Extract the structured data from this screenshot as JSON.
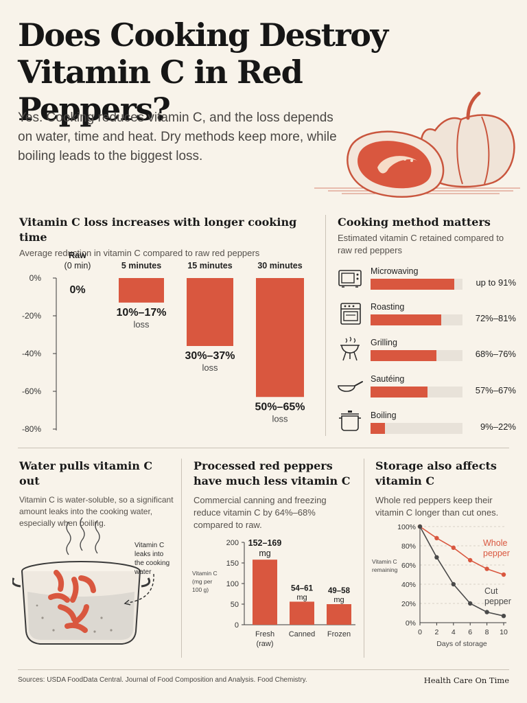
{
  "header": {
    "title": "Does Cooking Destroy Vitamin C in Red Peppers?",
    "intro": "Yes. Cooking reduces vitamin C, and the loss depends on water, time and heat. Dry methods keep more, while boiling leads to the biggest loss."
  },
  "colors": {
    "accent": "#d9573f",
    "track": "#e8e2d9",
    "text": "#1f1c1a",
    "muted": "#55504b",
    "background": "#f8f3ea",
    "dark_line": "#4a4a4a"
  },
  "time_chart": {
    "title": "Vitamin C loss increases with longer cooking time",
    "subtitle": "Average reduction in vitamin C compared to raw red peppers",
    "loss_word": "loss"
  },
  "methods": {
    "title": "Cooking method matters",
    "subtitle": "Estimated vitamin C retained compared to raw red peppers",
    "items": [
      {
        "label": "Microwaving",
        "value": "up to 91%",
        "icon": "microwave-icon",
        "retained": 91
      },
      {
        "label": "Roasting",
        "value": "72%–81%",
        "icon": "oven-icon",
        "retained": 76.5
      },
      {
        "label": "Grilling",
        "value": "68%–76%",
        "icon": "grill-icon",
        "retained": 72
      },
      {
        "label": "Sautéing",
        "value": "57%–67%",
        "icon": "pan-icon",
        "retained": 62
      },
      {
        "label": "Boiling",
        "value": "9%–22%",
        "icon": "pot-icon",
        "retained": 15.5
      }
    ]
  },
  "water": {
    "title": "Water pulls vitamin C out",
    "text": "Vitamin C is water-soluble, so a significant amount leaks into the cooking water, especially when boiling.",
    "callout": [
      "Vitamin C",
      "leaks into",
      "the cooking",
      "water"
    ]
  },
  "processed": {
    "title": "Processed red peppers have much less vitamin C",
    "text": "Commercial canning and freezing reduce vitamin C by 64%–68% compared to raw."
  },
  "storage": {
    "title": "Storage also affects vitamin C",
    "text": "Whole red peppers keep their vitamin C longer than cut ones."
  },
  "footer": {
    "sources": "Sources: USDA FoodData Central. Journal of Food Composition and Analysis. Food Chemistry.",
    "brand": "Health Care On Time"
  },
  "chart_data": [
    {
      "type": "bar",
      "title": "Vitamin C loss increases with longer cooking time",
      "subtitle": "Average reduction in vitamin C compared to raw red peppers",
      "categories": [
        [
          "Raw",
          "(0 min)"
        ],
        [
          "5 minutes"
        ],
        [
          "15 minutes"
        ],
        [
          "30 minutes"
        ]
      ],
      "values": [
        0,
        -13,
        -36,
        -63
      ],
      "labels": [
        "0%",
        "10%–17%",
        "30%–37%",
        "50%–65%"
      ],
      "ylim": [
        -80,
        0
      ],
      "yticks": [
        0,
        -20,
        -40,
        -60,
        -80
      ],
      "ytick_labels": [
        "0%",
        "-20%",
        "-40%",
        "-60%",
        "-80%"
      ]
    },
    {
      "type": "bar",
      "title": "Cooking method matters",
      "categories": [
        "Microwaving",
        "Roasting",
        "Grilling",
        "Sautéing",
        "Boiling"
      ],
      "values": [
        91,
        76.5,
        72,
        62,
        15.5
      ],
      "labels": [
        "up to 91%",
        "72%–81%",
        "68%–76%",
        "57%–67%",
        "9%–22%"
      ],
      "xlim": [
        0,
        100
      ]
    },
    {
      "type": "bar",
      "title": "Processed red peppers have much less vitamin C",
      "ylabel": [
        "Vitamin C",
        "(mg per",
        "100 g)"
      ],
      "categories": [
        [
          "Fresh",
          "(raw)"
        ],
        [
          "Canned"
        ],
        [
          "Frozen"
        ]
      ],
      "values": [
        158,
        56,
        50
      ],
      "labels": [
        [
          "152–169",
          "mg"
        ],
        [
          "54–61",
          "mg"
        ],
        [
          "49–58",
          "mg"
        ]
      ],
      "ylim": [
        0,
        200
      ],
      "yticks": [
        0,
        50,
        100,
        150,
        200
      ]
    },
    {
      "type": "line",
      "title": "Storage also affects vitamin C",
      "xlabel": "Days of storage",
      "ylabel": [
        "Vitamin C",
        "remaining"
      ],
      "xlim": [
        0,
        10
      ],
      "ylim": [
        0,
        100
      ],
      "xticks": [
        0,
        2,
        4,
        6,
        8,
        10
      ],
      "yticks": [
        0,
        20,
        40,
        60,
        80,
        100
      ],
      "ytick_labels": [
        "0%",
        "20%",
        "40%",
        "60%",
        "80%",
        "100%"
      ],
      "series": [
        {
          "name": [
            "Whole",
            "pepper"
          ],
          "x": [
            0,
            2,
            4,
            6,
            8,
            10
          ],
          "y": [
            100,
            88,
            78,
            65,
            56,
            50
          ],
          "color": "#d9573f"
        },
        {
          "name": [
            "Cut",
            "pepper"
          ],
          "x": [
            0,
            2,
            4,
            6,
            8,
            10
          ],
          "y": [
            100,
            68,
            40,
            20,
            11,
            7
          ],
          "color": "#4a4a4a"
        }
      ]
    }
  ]
}
